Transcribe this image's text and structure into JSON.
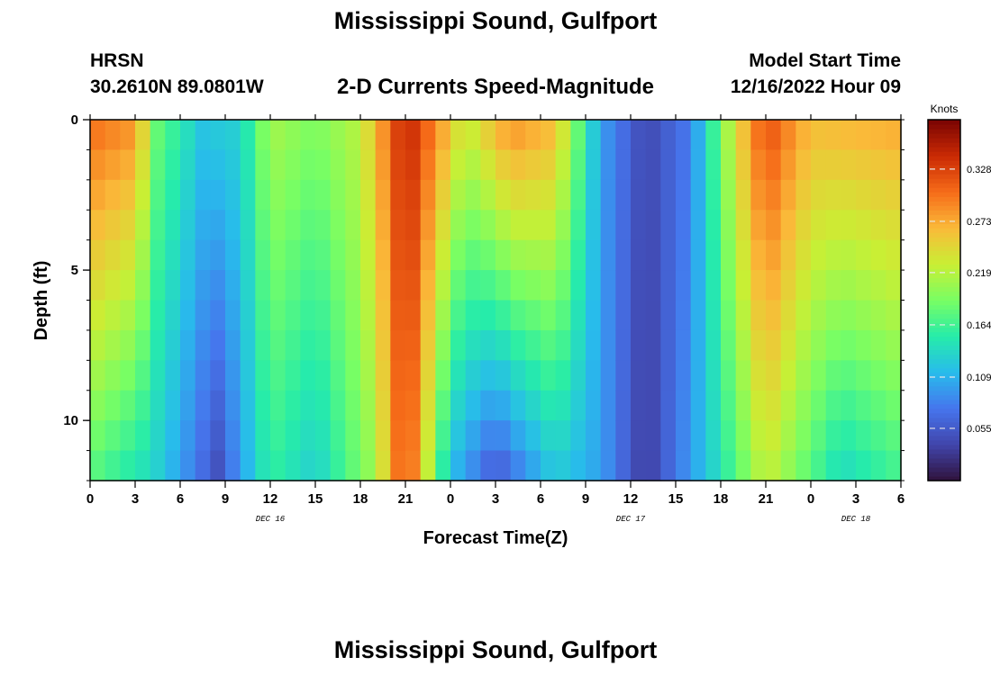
{
  "header": {
    "title": "Mississippi Sound, Gulfport",
    "station_id": "HRSN",
    "station_coords": "30.2610N  89.0801W",
    "chart_title": "2-D Currents Speed-Magnitude",
    "model_start_label": "Model Start Time",
    "model_start_value": "12/16/2022 Hour 09"
  },
  "footer": {
    "title": "Mississippi Sound, Gulfport"
  },
  "colors": {
    "colormap": "turbo",
    "background": "#ffffff",
    "axis": "#000000"
  },
  "chart_data": {
    "type": "heatmap",
    "xlabel": "Forecast Time(Z)",
    "ylabel": "Depth (ft)",
    "x_range_hours": [
      0,
      54
    ],
    "x_ticks": [
      {
        "hour": 0,
        "label": "0"
      },
      {
        "hour": 3,
        "label": "3"
      },
      {
        "hour": 6,
        "label": "6"
      },
      {
        "hour": 9,
        "label": "9"
      },
      {
        "hour": 12,
        "label": "12"
      },
      {
        "hour": 15,
        "label": "15"
      },
      {
        "hour": 18,
        "label": "18"
      },
      {
        "hour": 21,
        "label": "21"
      },
      {
        "hour": 24,
        "label": "0"
      },
      {
        "hour": 27,
        "label": "3"
      },
      {
        "hour": 30,
        "label": "6"
      },
      {
        "hour": 33,
        "label": "9"
      },
      {
        "hour": 36,
        "label": "12"
      },
      {
        "hour": 39,
        "label": "15"
      },
      {
        "hour": 42,
        "label": "18"
      },
      {
        "hour": 45,
        "label": "21"
      },
      {
        "hour": 48,
        "label": "0"
      },
      {
        "hour": 51,
        "label": "3"
      },
      {
        "hour": 54,
        "label": "6"
      }
    ],
    "date_labels": [
      {
        "hour": 12,
        "label": "DEC 16"
      },
      {
        "hour": 36,
        "label": "DEC 17"
      },
      {
        "hour": 51,
        "label": "DEC 18"
      }
    ],
    "y_range_ft": [
      0,
      12
    ],
    "y_inverted": true,
    "y_ticks": [
      {
        "value": 0,
        "label": "0"
      },
      {
        "value": 5,
        "label": "5"
      },
      {
        "value": 10,
        "label": "10"
      }
    ],
    "colorbar": {
      "unit_label": "Knots",
      "range": [
        0.0,
        0.38
      ],
      "ticks": [
        {
          "value": 0.055,
          "label": "0.055"
        },
        {
          "value": 0.109,
          "label": "0.109"
        },
        {
          "value": 0.164,
          "label": "0.164"
        },
        {
          "value": 0.219,
          "label": "0.219"
        },
        {
          "value": 0.273,
          "label": "0.273"
        },
        {
          "value": 0.328,
          "label": "0.328"
        }
      ]
    },
    "depth_bins_ft": [
      0.5,
      1.5,
      2.5,
      3.5,
      4.5,
      5.5,
      6.5,
      7.5,
      8.5,
      9.5,
      10.5,
      11.5
    ],
    "surface_speed_knots": [
      {
        "hour": 0,
        "value": 0.3
      },
      {
        "hour": 3,
        "value": 0.28
      },
      {
        "hour": 4.5,
        "value": 0.18
      },
      {
        "hour": 7.5,
        "value": 0.12
      },
      {
        "hour": 10,
        "value": 0.13
      },
      {
        "hour": 12,
        "value": 0.21
      },
      {
        "hour": 15,
        "value": 0.19
      },
      {
        "hour": 18,
        "value": 0.22
      },
      {
        "hour": 21,
        "value": 0.35
      },
      {
        "hour": 23,
        "value": 0.29
      },
      {
        "hour": 25,
        "value": 0.22
      },
      {
        "hour": 28,
        "value": 0.28
      },
      {
        "hour": 31,
        "value": 0.26
      },
      {
        "hour": 34,
        "value": 0.1
      },
      {
        "hour": 37,
        "value": 0.04
      },
      {
        "hour": 40,
        "value": 0.08
      },
      {
        "hour": 43,
        "value": 0.24
      },
      {
        "hour": 45,
        "value": 0.32
      },
      {
        "hour": 48,
        "value": 0.26
      },
      {
        "hour": 54,
        "value": 0.27
      }
    ],
    "near_bottom_speed_knots": [
      {
        "hour": 0,
        "value": 0.18
      },
      {
        "hour": 4,
        "value": 0.14
      },
      {
        "hour": 8.5,
        "value": 0.05
      },
      {
        "hour": 12,
        "value": 0.16
      },
      {
        "hour": 15,
        "value": 0.13
      },
      {
        "hour": 19,
        "value": 0.21
      },
      {
        "hour": 21,
        "value": 0.33
      },
      {
        "hour": 24,
        "value": 0.12
      },
      {
        "hour": 27,
        "value": 0.06
      },
      {
        "hour": 31,
        "value": 0.13
      },
      {
        "hour": 34,
        "value": 0.1
      },
      {
        "hour": 37,
        "value": 0.03
      },
      {
        "hour": 41,
        "value": 0.12
      },
      {
        "hour": 45,
        "value": 0.23
      },
      {
        "hour": 50,
        "value": 0.14
      },
      {
        "hour": 54,
        "value": 0.17
      }
    ]
  }
}
